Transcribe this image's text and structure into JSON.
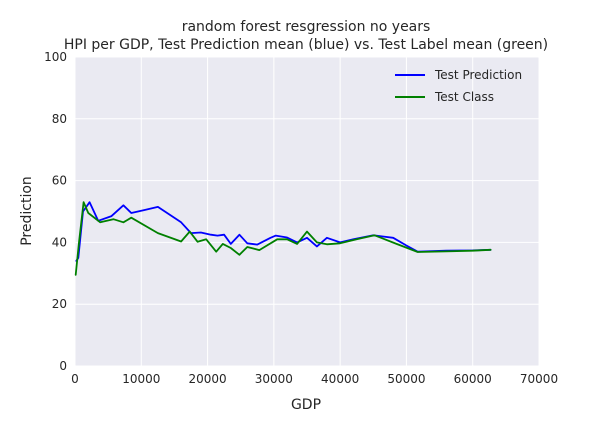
{
  "chart_data": {
    "type": "line",
    "title": "random forest resgression no years",
    "subtitle": "HPI per GDP, Test Prediction mean (blue) vs. Test Label mean (green)",
    "xlabel": "GDP",
    "ylabel": "Prediction",
    "xlim": [
      0,
      70000
    ],
    "ylim": [
      0,
      100
    ],
    "x_ticks": [
      "0",
      "10000",
      "20000",
      "30000",
      "40000",
      "50000",
      "60000",
      "70000"
    ],
    "y_ticks": [
      "0",
      "20",
      "40",
      "60",
      "80",
      "100"
    ],
    "grid": true,
    "background": "#eaeaf2",
    "legend_position": "top-right",
    "series": [
      {
        "name": "Test Prediction",
        "color": "#0000ff",
        "points": [
          [
            200,
            34
          ],
          [
            500,
            35
          ],
          [
            1200,
            50
          ],
          [
            2200,
            53
          ],
          [
            3500,
            47
          ],
          [
            5500,
            48.5
          ],
          [
            7300,
            52
          ],
          [
            8500,
            49.5
          ],
          [
            10500,
            50.5
          ],
          [
            12500,
            51.5
          ],
          [
            16000,
            46.5
          ],
          [
            17500,
            43
          ],
          [
            19000,
            43.2
          ],
          [
            20500,
            42.5
          ],
          [
            21500,
            42.2
          ],
          [
            22500,
            42.5
          ],
          [
            23500,
            39.5
          ],
          [
            24800,
            42.5
          ],
          [
            26000,
            39.7
          ],
          [
            27500,
            39.3
          ],
          [
            29500,
            41.5
          ],
          [
            30300,
            42.2
          ],
          [
            32000,
            41.6
          ],
          [
            33500,
            40
          ],
          [
            35000,
            41.5
          ],
          [
            36500,
            38.7
          ],
          [
            38000,
            41.5
          ],
          [
            40000,
            40
          ],
          [
            42000,
            41
          ],
          [
            45000,
            42.3
          ],
          [
            48000,
            41.5
          ],
          [
            50000,
            39
          ],
          [
            51700,
            37
          ],
          [
            56000,
            37.3
          ],
          [
            60000,
            37.4
          ],
          [
            62700,
            37.6
          ]
        ]
      },
      {
        "name": "Test Class",
        "color": "#008000",
        "points": [
          [
            100,
            29.5
          ],
          [
            600,
            40
          ],
          [
            1300,
            53
          ],
          [
            2000,
            49.5
          ],
          [
            3800,
            46.5
          ],
          [
            5800,
            47.5
          ],
          [
            7300,
            46.5
          ],
          [
            8500,
            48
          ],
          [
            12500,
            43
          ],
          [
            16000,
            40.3
          ],
          [
            17300,
            43.5
          ],
          [
            18500,
            40.2
          ],
          [
            19800,
            41
          ],
          [
            21300,
            37
          ],
          [
            22300,
            39.5
          ],
          [
            23500,
            38.2
          ],
          [
            24800,
            36
          ],
          [
            26000,
            38.5
          ],
          [
            27800,
            37.5
          ],
          [
            30500,
            41
          ],
          [
            32000,
            41
          ],
          [
            33500,
            39.5
          ],
          [
            35000,
            43.5
          ],
          [
            36500,
            40
          ],
          [
            38000,
            39.4
          ],
          [
            40000,
            39.7
          ],
          [
            42500,
            41
          ],
          [
            45200,
            42.3
          ],
          [
            48500,
            39.5
          ],
          [
            51700,
            36.9
          ],
          [
            56000,
            37.1
          ],
          [
            60000,
            37.3
          ],
          [
            62700,
            37.6
          ]
        ]
      }
    ]
  }
}
